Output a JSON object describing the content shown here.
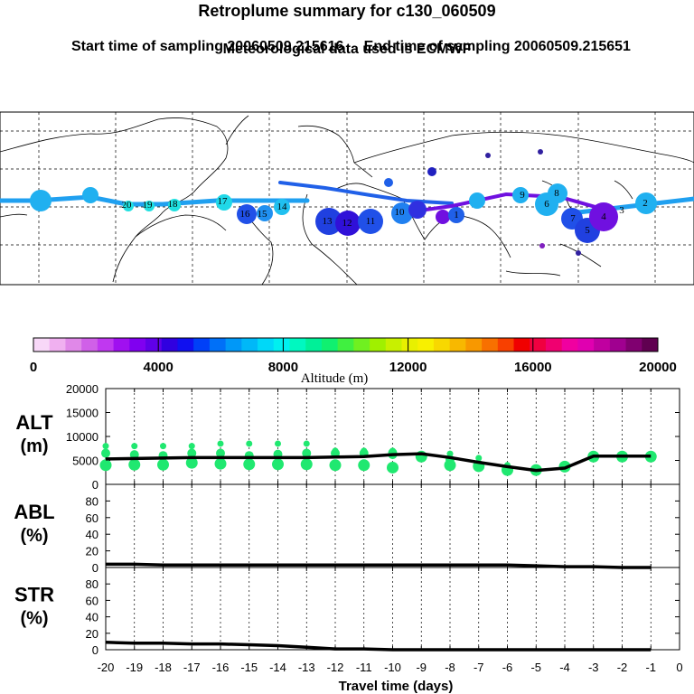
{
  "header": {
    "title": "Retroplume summary for c130_060509",
    "start_label": "Start time of sampling 20060509.215616",
    "end_label": "End time of sampling 20060509.215651",
    "met_label": "Meteorological data used is ECMWF"
  },
  "colorbar": {
    "colors": [
      "#f8d8f8",
      "#f0b0f0",
      "#e088e8",
      "#d060e8",
      "#c038f0",
      "#a010f0",
      "#8000f0",
      "#6000e8",
      "#3000e0",
      "#1010f0",
      "#0040f8",
      "#0070f8",
      "#0098f8",
      "#00b8f8",
      "#00d8f8",
      "#00f0f0",
      "#00f8c0",
      "#00f098",
      "#10f070",
      "#40f040",
      "#70f020",
      "#a0f000",
      "#c8f000",
      "#e8f000",
      "#f8f000",
      "#f8d800",
      "#f8b800",
      "#f89800",
      "#f87000",
      "#f84000",
      "#f00000",
      "#f00040",
      "#f00070",
      "#f000a0",
      "#e000b0",
      "#c000a0",
      "#a00090",
      "#800070",
      "#600050"
    ],
    "ticks": [
      "0",
      "4000",
      "8000",
      "12000",
      "16000",
      "20000"
    ],
    "label": "Altitude (m)"
  },
  "map": {
    "plume_labels": [
      "20",
      "19",
      "18",
      "17",
      "16",
      "15",
      "14",
      "13",
      "12",
      "11",
      "10",
      "9",
      "8",
      "7",
      "6",
      "5",
      "4",
      "3",
      "2",
      "1"
    ]
  },
  "chart_data": [
    {
      "type": "line",
      "panel": "ALT",
      "ylabel": "ALT",
      "yunit": "(m)",
      "ylim": [
        0,
        20000
      ],
      "yticks": [
        0,
        5000,
        10000,
        15000,
        20000
      ],
      "x": [
        -20,
        -19,
        -18,
        -17,
        -16,
        -15,
        -14,
        -13,
        -12,
        -11,
        -10,
        -9,
        -8,
        -7,
        -6,
        -5,
        -4,
        -3,
        -2,
        -1
      ],
      "series": [
        {
          "name": "mean altitude",
          "values": [
            5300,
            5400,
            5500,
            5600,
            5600,
            5600,
            5600,
            5600,
            5700,
            5800,
            6200,
            6400,
            5600,
            4600,
            3700,
            2900,
            3400,
            5900,
            5900,
            5900
          ]
        }
      ],
      "scatter_values": [
        [
          8000,
          6500,
          4000
        ],
        [
          8000,
          6200,
          4100
        ],
        [
          8000,
          6000,
          4100
        ],
        [
          8000,
          6500,
          4500
        ],
        [
          8500,
          6500,
          4300
        ],
        [
          8500,
          6000,
          4200
        ],
        [
          8500,
          6300,
          4200
        ],
        [
          8500,
          6500,
          4200
        ],
        [
          7000,
          6500,
          4000
        ],
        [
          7000,
          6500,
          4000
        ],
        [
          7000,
          6600,
          6200,
          3500
        ],
        [
          6200,
          5800
        ],
        [
          6400,
          5200,
          4000
        ],
        [
          5500,
          3800
        ],
        [
          4000,
          3000
        ],
        [
          3000
        ],
        [
          3700
        ],
        [
          5800
        ],
        [
          5800
        ],
        [
          5800
        ]
      ]
    },
    {
      "type": "line",
      "panel": "ABL",
      "ylabel": "ABL",
      "yunit": "(%)",
      "ylim": [
        0,
        100
      ],
      "yticks": [
        0,
        20,
        40,
        60,
        80
      ],
      "x": [
        -20,
        -19,
        -18,
        -17,
        -16,
        -15,
        -14,
        -13,
        -12,
        -11,
        -10,
        -9,
        -8,
        -7,
        -6,
        -5,
        -4,
        -3,
        -2,
        -1
      ],
      "series": [
        {
          "name": "ABL fraction",
          "values": [
            4,
            4,
            3,
            3,
            3,
            3,
            3,
            3,
            3,
            3,
            3,
            3,
            3,
            3,
            3,
            2,
            1,
            1,
            0,
            0
          ]
        }
      ]
    },
    {
      "type": "line",
      "panel": "STR",
      "ylabel": "STR",
      "yunit": "(%)",
      "ylim": [
        0,
        100
      ],
      "yticks": [
        0,
        20,
        40,
        60,
        80
      ],
      "x": [
        -20,
        -19,
        -18,
        -17,
        -16,
        -15,
        -14,
        -13,
        -12,
        -11,
        -10,
        -9,
        -8,
        -7,
        -6,
        -5,
        -4,
        -3,
        -2,
        -1
      ],
      "xlim": [
        -20,
        0
      ],
      "xticks": [
        -20,
        -19,
        -18,
        -17,
        -16,
        -15,
        -14,
        -13,
        -12,
        -11,
        -10,
        -9,
        -8,
        -7,
        -6,
        -5,
        -4,
        -3,
        -2,
        -1,
        0
      ],
      "xlabel": "Travel time (days)",
      "series": [
        {
          "name": "stratospheric fraction",
          "values": [
            9,
            8,
            8,
            7,
            7,
            6,
            5,
            3,
            1,
            1,
            0,
            0,
            0,
            0,
            0,
            0,
            0,
            0,
            0,
            0
          ]
        }
      ]
    }
  ]
}
